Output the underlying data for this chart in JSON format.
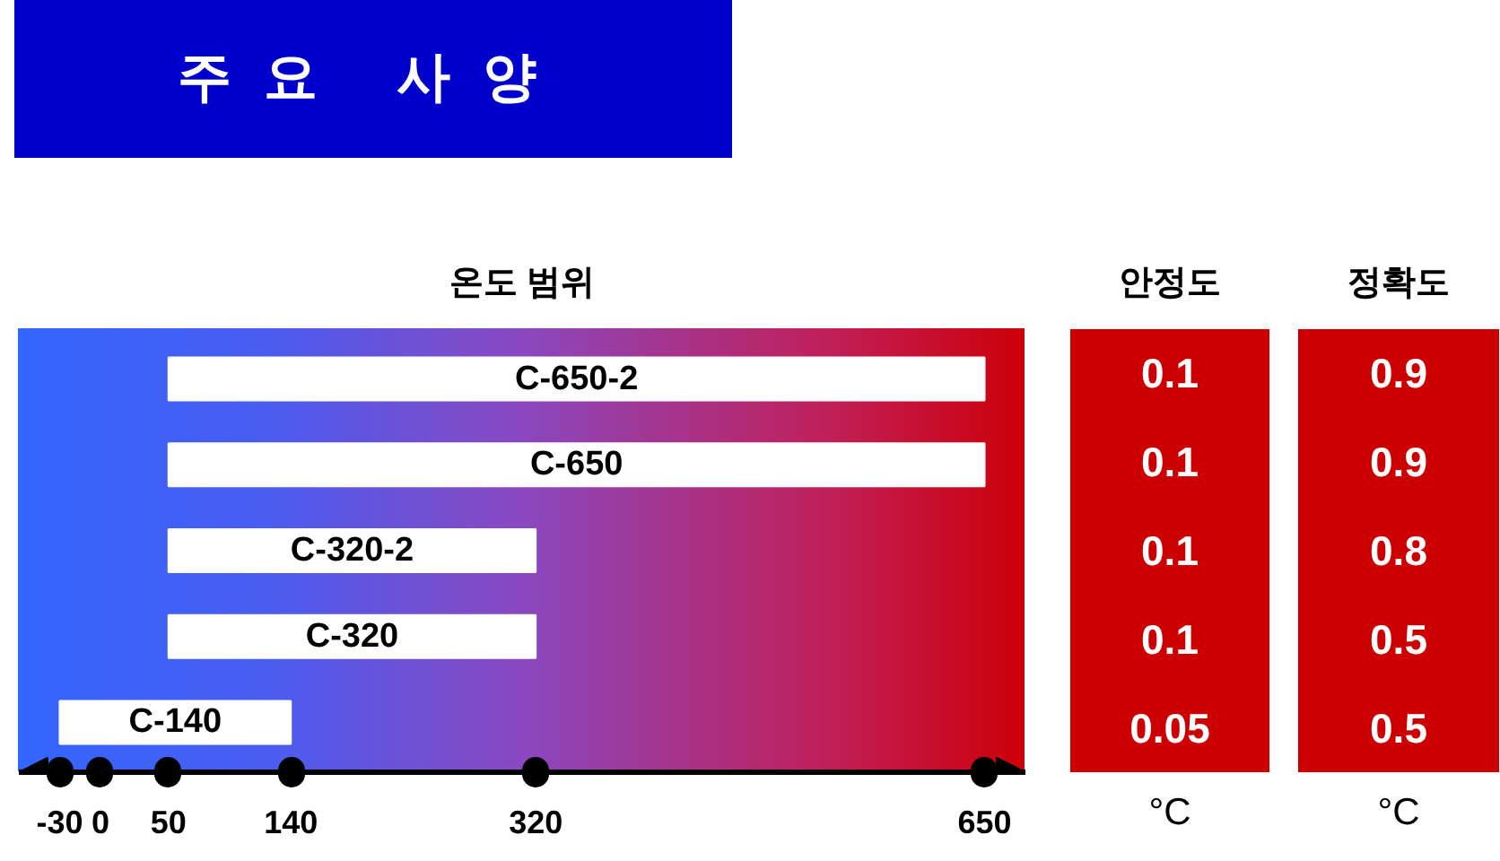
{
  "chart_data": [
    {
      "type": "bar",
      "title": "주요 사양",
      "subtitle": "온도 범위",
      "orientation": "horizontal",
      "categories": [
        "C-650-2",
        "C-650",
        "C-320-2",
        "C-320",
        "C-140"
      ],
      "base": [
        50,
        50,
        50,
        50,
        -30
      ],
      "values": [
        600,
        600,
        270,
        270,
        170
      ],
      "color": "#ffffff",
      "xlim": [
        -60,
        680
      ],
      "xticks": [
        -30,
        0,
        50,
        140,
        320,
        650
      ],
      "tick_labels": "x"
    },
    {
      "type": "other",
      "title": "안정도",
      "values": [
        0.1,
        0.1,
        0.1,
        0.1,
        0.05
      ],
      "color": "#cc0000",
      "data_labels": true,
      "annotations": [
        "°C"
      ]
    },
    {
      "type": "other",
      "title": "정확도",
      "values": [
        0.9,
        0.9,
        0.8,
        0.5,
        0.5
      ],
      "color": "#cc0000",
      "data_labels": true,
      "annotations": [
        "°C"
      ]
    }
  ]
}
